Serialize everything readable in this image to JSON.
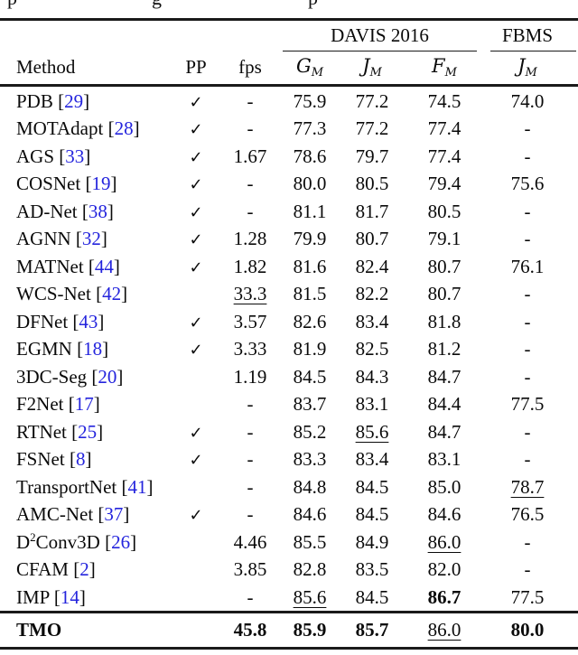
{
  "page": {
    "background": "#ffffff",
    "text_color": "#0a0a0a",
    "citation_color": "#2424dd"
  },
  "top_fragments": [
    "p",
    "g",
    "p"
  ],
  "table": {
    "group_headers": {
      "davis": "DAVIS 2016",
      "fbms": "FBMS"
    },
    "columns": {
      "method": "Method",
      "pp": "PP",
      "fps": "fps"
    },
    "metrics": [
      {
        "letter": "G",
        "sub": "M"
      },
      {
        "letter": "J",
        "sub": "M"
      },
      {
        "letter": "F",
        "sub": "M"
      },
      {
        "letter": "J",
        "sub": "M"
      }
    ],
    "pp_mark": "✓",
    "rows": [
      {
        "name": "PDB",
        "cite": "29",
        "pp": true,
        "fps": "-",
        "g": "75.9",
        "j": "77.2",
        "f": "74.5",
        "fbms": "74.0"
      },
      {
        "name": "MOTAdapt",
        "cite": "28",
        "pp": true,
        "fps": "-",
        "g": "77.3",
        "j": "77.2",
        "f": "77.4",
        "fbms": "-"
      },
      {
        "name": "AGS",
        "cite": "33",
        "pp": true,
        "fps": "1.67",
        "g": "78.6",
        "j": "79.7",
        "f": "77.4",
        "fbms": "-"
      },
      {
        "name": "COSNet",
        "cite": "19",
        "pp": true,
        "fps": "-",
        "g": "80.0",
        "j": "80.5",
        "f": "79.4",
        "fbms": "75.6"
      },
      {
        "name": "AD-Net",
        "cite": "38",
        "pp": true,
        "fps": "-",
        "g": "81.1",
        "j": "81.7",
        "f": "80.5",
        "fbms": "-"
      },
      {
        "name": "AGNN",
        "cite": "32",
        "pp": true,
        "fps": "1.28",
        "g": "79.9",
        "j": "80.7",
        "f": "79.1",
        "fbms": "-"
      },
      {
        "name": "MATNet",
        "cite": "44",
        "pp": true,
        "fps": "1.82",
        "g": "81.6",
        "j": "82.4",
        "f": "80.7",
        "fbms": "76.1"
      },
      {
        "name": "WCS-Net",
        "cite": "42",
        "pp": false,
        "fps": "33.3",
        "fps_style": "underline",
        "g": "81.5",
        "j": "82.2",
        "f": "80.7",
        "fbms": "-"
      },
      {
        "name": "DFNet",
        "cite": "43",
        "pp": true,
        "fps": "3.57",
        "g": "82.6",
        "j": "83.4",
        "f": "81.8",
        "fbms": "-"
      },
      {
        "name": "EGMN",
        "cite": "18",
        "pp": true,
        "fps": "3.33",
        "g": "81.9",
        "j": "82.5",
        "f": "81.2",
        "fbms": "-"
      },
      {
        "name": "3DC-Seg",
        "cite": "20",
        "pp": false,
        "fps": "1.19",
        "g": "84.5",
        "j": "84.3",
        "f": "84.7",
        "fbms": "-"
      },
      {
        "name": "F2Net",
        "cite": "17",
        "pp": false,
        "fps": "-",
        "g": "83.7",
        "j": "83.1",
        "f": "84.4",
        "fbms": "77.5"
      },
      {
        "name": "RTNet",
        "cite": "25",
        "pp": true,
        "fps": "-",
        "g": "85.2",
        "j": "85.6",
        "j_style": "underline",
        "f": "84.7",
        "fbms": "-"
      },
      {
        "name": "FSNet",
        "cite": "8",
        "pp": true,
        "fps": "-",
        "g": "83.3",
        "j": "83.4",
        "f": "83.1",
        "fbms": "-"
      },
      {
        "name": "TransportNet",
        "cite": "41",
        "pp": false,
        "fps": "-",
        "g": "84.8",
        "j": "84.5",
        "f": "85.0",
        "fbms": "78.7",
        "fbms_style": "underline"
      },
      {
        "name": "AMC-Net",
        "cite": "37",
        "pp": true,
        "fps": "-",
        "g": "84.6",
        "j": "84.5",
        "f": "84.6",
        "fbms": "76.5"
      },
      {
        "name": "D",
        "sup": "2",
        "name2": "Conv3D",
        "cite": "26",
        "pp": false,
        "fps": "4.46",
        "g": "85.5",
        "j": "84.9",
        "f": "86.0",
        "f_style": "underline",
        "fbms": "-"
      },
      {
        "name": "CFAM",
        "cite": "2",
        "pp": false,
        "fps": "3.85",
        "g": "82.8",
        "j": "83.5",
        "f": "82.0",
        "fbms": "-"
      },
      {
        "name": "IMP",
        "cite": "14",
        "pp": false,
        "fps": "-",
        "g": "85.6",
        "g_style": "underline",
        "j": "84.5",
        "f": "86.7",
        "f_style": "bold",
        "fbms": "77.5"
      }
    ],
    "tmo_row": {
      "name": "TMO",
      "pp": false,
      "fps": "45.8",
      "fps_style": "bold",
      "g": "85.9",
      "g_style": "bold",
      "j": "85.7",
      "j_style": "bold",
      "f": "86.0",
      "f_style": "underline",
      "fbms": "80.0",
      "fbms_style": "bold"
    }
  }
}
